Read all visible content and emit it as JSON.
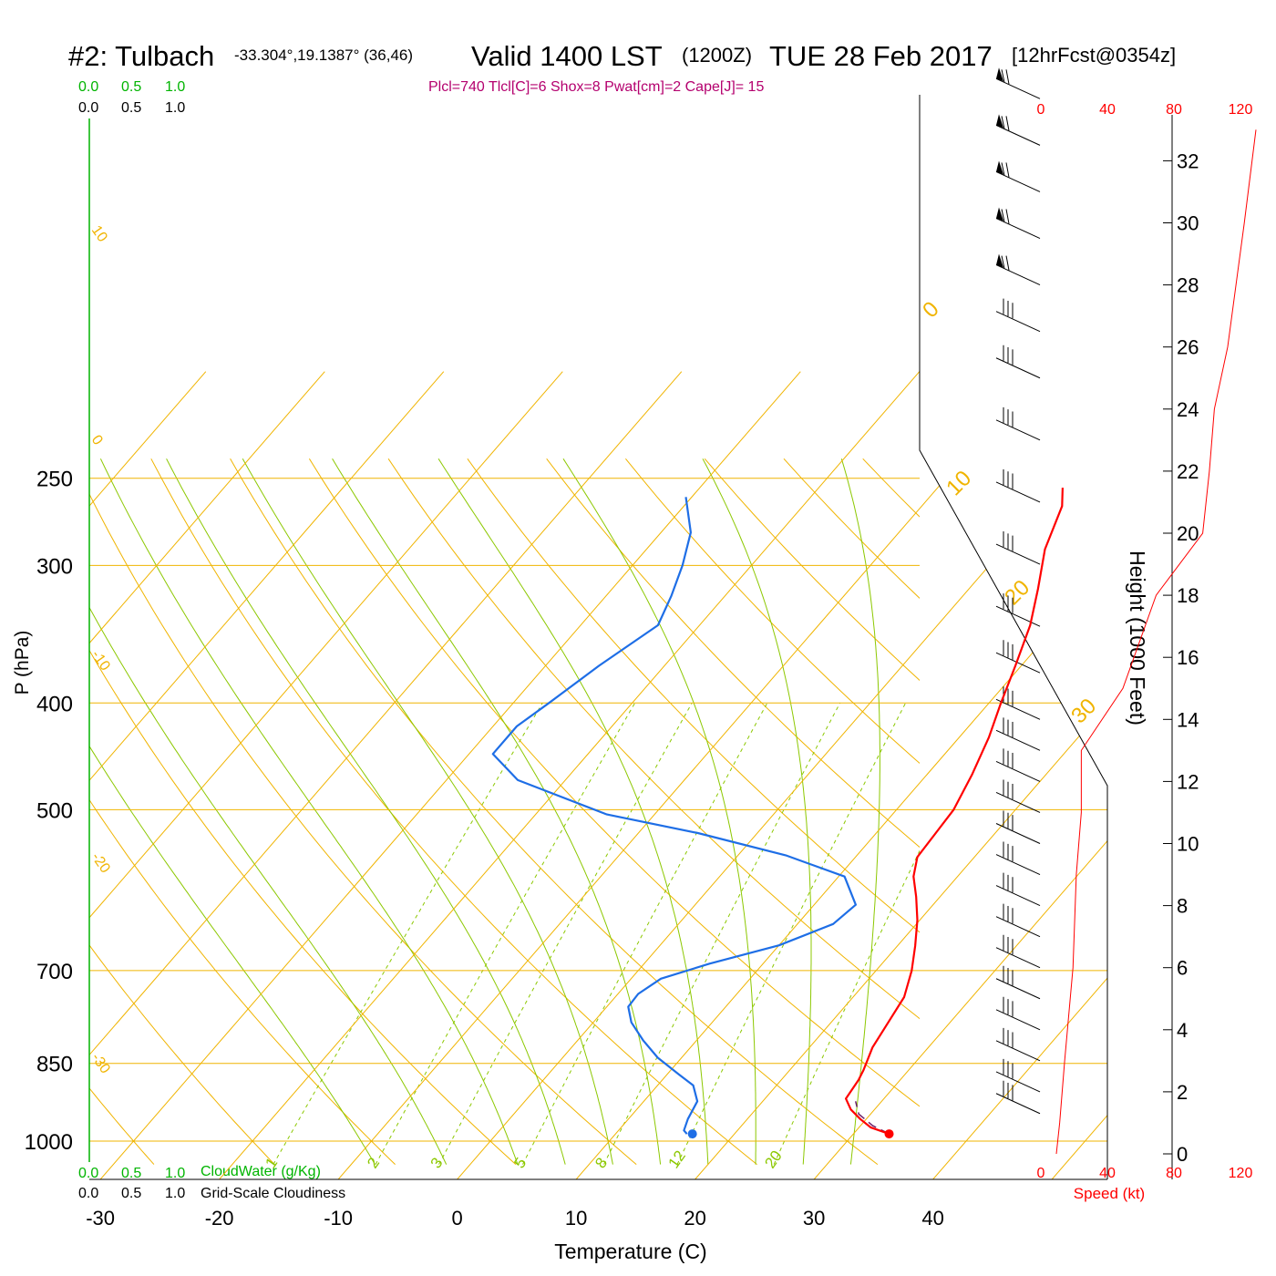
{
  "title": {
    "station": "#2: Tulbach",
    "coords": "-33.304°,19.1387° (36,46)",
    "valid": "Valid 1400 LST",
    "zulu": "(1200Z)",
    "date": "TUE 28 Feb 2017",
    "forecast": "[12hrFcst@0354z]",
    "params": "Plcl=740 Tlcl[C]=6 Shox=8 Pwat[cm]=2 Cape[J]= 15"
  },
  "cloud_scale": {
    "top_green": [
      "0.0",
      "0.5",
      "1.0"
    ],
    "top_black": [
      "0.0",
      "0.5",
      "1.0"
    ],
    "bottom_green": [
      "0.0",
      "0.5",
      "1.0"
    ],
    "bottom_green_label": "CloudWater (g/Kg)",
    "bottom_black": [
      "0.0",
      "0.5",
      "1.0"
    ],
    "bottom_black_label": "Grid-Scale Cloudiness"
  },
  "colors": {
    "temperature": "#ff0000",
    "dewpoint": "#1e6ee6",
    "isotherm_isobar": "#f0b400",
    "moist_adiabat": "#8cc800",
    "mixing_ratio": "#8cc800",
    "cloud_scale_green": "#00b400",
    "params_text": "#b4006e",
    "wind_speed": "#ff0000"
  },
  "chart_data": {
    "type": "skew-t",
    "xlabel": "Temperature (C)",
    "ylabel": "P (hPa)",
    "x_ticks": [
      "-30",
      "-20",
      "-10",
      "0",
      "10",
      "20",
      "30",
      "40"
    ],
    "pressure_ticks": [
      "250",
      "300",
      "400",
      "500",
      "700",
      "850",
      "1000"
    ],
    "pressure_values": [
      250,
      300,
      400,
      500,
      700,
      850,
      1000
    ],
    "height_label": "Height (1000 Feet)",
    "height_ticks": [
      "0",
      "2",
      "4",
      "6",
      "8",
      "10",
      "12",
      "14",
      "16",
      "18",
      "20",
      "22",
      "24",
      "26",
      "28",
      "30",
      "32"
    ],
    "wind_speed_label": "Speed (kt)",
    "wind_speed_ticks": [
      "0",
      "40",
      "80",
      "120"
    ],
    "isotherm_labels": [
      "10",
      "0",
      "-10",
      "-20",
      "-30"
    ],
    "isotherm_labels_right": [
      "0",
      "10",
      "20",
      "30"
    ],
    "mixing_ratio_labels": [
      "1",
      "2",
      "3",
      "5",
      "8",
      "12",
      "20"
    ],
    "temperature_series": {
      "name": "Temperature",
      "points": [
        [
          33.0,
          985
        ],
        [
          31.0,
          972
        ],
        [
          29.5,
          955
        ],
        [
          28.0,
          936
        ],
        [
          26.8,
          915
        ],
        [
          26.5,
          880
        ],
        [
          26.2,
          862
        ],
        [
          25.3,
          822
        ],
        [
          24.8,
          780
        ],
        [
          24.3,
          740
        ],
        [
          23.0,
          700
        ],
        [
          21.5,
          665
        ],
        [
          19.8,
          630
        ],
        [
          18.0,
          600
        ],
        [
          16.3,
          575
        ],
        [
          15.2,
          552
        ],
        [
          15.0,
          525
        ],
        [
          14.8,
          500
        ],
        [
          13.8,
          465
        ],
        [
          12.5,
          430
        ],
        [
          11.0,
          400
        ],
        [
          9.5,
          370
        ],
        [
          7.8,
          340
        ],
        [
          5.8,
          315
        ],
        [
          3.5,
          290
        ],
        [
          1.8,
          265
        ],
        [
          0.5,
          255
        ]
      ]
    },
    "dewpoint_series": {
      "name": "Dewpoint",
      "points": [
        [
          16.0,
          985
        ],
        [
          15.5,
          978
        ],
        [
          15.0,
          955
        ],
        [
          14.5,
          920
        ],
        [
          13.0,
          890
        ],
        [
          11.0,
          870
        ],
        [
          8.0,
          840
        ],
        [
          5.5,
          810
        ],
        [
          3.2,
          780
        ],
        [
          1.8,
          755
        ],
        [
          1.7,
          735
        ],
        [
          2.5,
          712
        ],
        [
          5.5,
          690
        ],
        [
          10.0,
          664
        ],
        [
          13.0,
          635
        ],
        [
          13.5,
          610
        ],
        [
          10.5,
          575
        ],
        [
          4.0,
          550
        ],
        [
          -5.0,
          525
        ],
        [
          -14.0,
          505
        ],
        [
          -24.0,
          470
        ],
        [
          -28.0,
          445
        ],
        [
          -28.0,
          420
        ],
        [
          -27.0,
          400
        ],
        [
          -25.5,
          370
        ],
        [
          -23.5,
          340
        ],
        [
          -24.5,
          320
        ],
        [
          -25.8,
          300
        ],
        [
          -27.5,
          280
        ],
        [
          -30.5,
          260
        ]
      ]
    },
    "parcel_series": {
      "name": "Parcel",
      "points": [
        [
          33.0,
          985
        ],
        [
          31.0,
          968
        ],
        [
          29.0,
          945
        ],
        [
          27.8,
          920
        ]
      ]
    },
    "surface_points": {
      "temperature": 33.0,
      "dewpoint": 16.0,
      "pressure": 985
    },
    "wind_speed_profile_kt": [
      [
        0,
        0
      ],
      [
        1,
        2
      ],
      [
        3,
        5
      ],
      [
        6,
        10
      ],
      [
        9,
        12
      ],
      [
        11,
        15
      ],
      [
        13,
        15
      ],
      [
        15,
        40
      ],
      [
        18,
        60
      ],
      [
        20,
        88
      ],
      [
        22,
        92
      ],
      [
        24,
        95
      ],
      [
        26,
        103
      ],
      [
        28,
        108
      ],
      [
        30,
        113
      ],
      [
        33,
        120
      ]
    ],
    "wind_barbs": [
      {
        "height_kft": 1.3,
        "barb": "flag"
      },
      {
        "height_kft": 2,
        "barb": "flag"
      },
      {
        "height_kft": 3,
        "barb": "flag"
      },
      {
        "height_kft": 4,
        "barb": "flag"
      },
      {
        "height_kft": 5,
        "barb": "flag"
      },
      {
        "height_kft": 6,
        "barb": "flag"
      },
      {
        "height_kft": 7,
        "barb": "flag"
      },
      {
        "height_kft": 8,
        "barb": "flag"
      },
      {
        "height_kft": 9,
        "barb": "flag"
      },
      {
        "height_kft": 10,
        "barb": "flag"
      },
      {
        "height_kft": 11,
        "barb": "flag"
      },
      {
        "height_kft": 12,
        "barb": "flag"
      },
      {
        "height_kft": 13,
        "barb": "flag"
      },
      {
        "height_kft": 14,
        "barb": "flag"
      },
      {
        "height_kft": 15.5,
        "barb": "flag"
      },
      {
        "height_kft": 17,
        "barb": "flag"
      },
      {
        "height_kft": 19,
        "barb": "flag"
      },
      {
        "height_kft": 21,
        "barb": "flag"
      },
      {
        "height_kft": 23,
        "barb": "flag"
      },
      {
        "height_kft": 25,
        "barb": "flag"
      },
      {
        "height_kft": 26.5,
        "barb": "flag"
      },
      {
        "height_kft": 28,
        "barb": "pennant"
      },
      {
        "height_kft": 29.5,
        "barb": "pennant"
      },
      {
        "height_kft": 31,
        "barb": "pennant"
      },
      {
        "height_kft": 32.5,
        "barb": "pennant"
      },
      {
        "height_kft": 34,
        "barb": "pennant"
      }
    ]
  }
}
